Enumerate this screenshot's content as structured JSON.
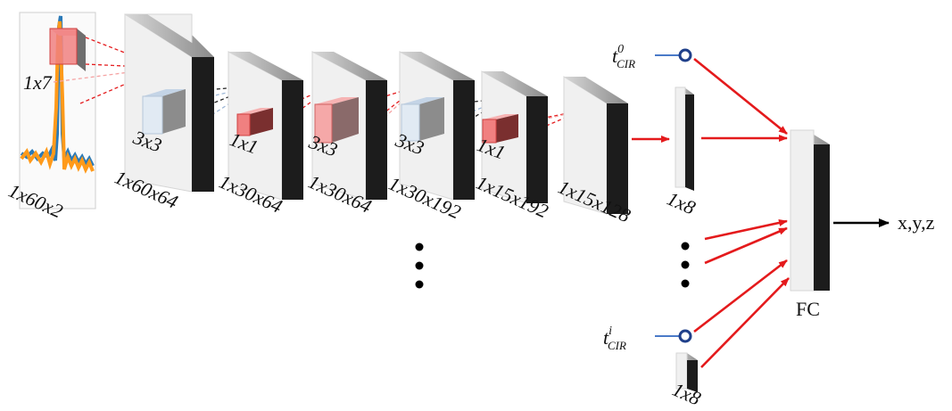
{
  "input": {
    "kernel_label": "1x7",
    "dim_label": "1x60x2"
  },
  "layers": [
    {
      "dim_label": "1x60x64",
      "kernel_label": "3x3"
    },
    {
      "dim_label": "1x30x64",
      "kernel_label": "1x1"
    },
    {
      "dim_label": "1x30x64",
      "kernel_label": "3x3"
    },
    {
      "dim_label": "1x30x192",
      "kernel_label": "3x3"
    },
    {
      "dim_label": "1x15x192",
      "kernel_label": "1x1"
    },
    {
      "dim_label": "1x15x128"
    }
  ],
  "feature_vectors": [
    {
      "dim_label": "1x8"
    },
    {
      "dim_label": "1x8"
    }
  ],
  "time_inputs": [
    {
      "base": "t",
      "superscript": "0",
      "subscript": "CIR"
    },
    {
      "base": "t",
      "superscript": "i",
      "subscript": "CIR"
    }
  ],
  "fc": {
    "label": "FC"
  },
  "output": {
    "label": "x,y,z"
  },
  "colors": {
    "arrow": "#e41a1c",
    "kernel_red": "#f08080",
    "kernel_blue": "#dfe9f3",
    "input_blue": "#2a7ab8",
    "input_orange": "#ff9a1a",
    "node": "#1f3f8a",
    "block_face": "#f0f0f0",
    "block_side": "#1c1c1c"
  }
}
